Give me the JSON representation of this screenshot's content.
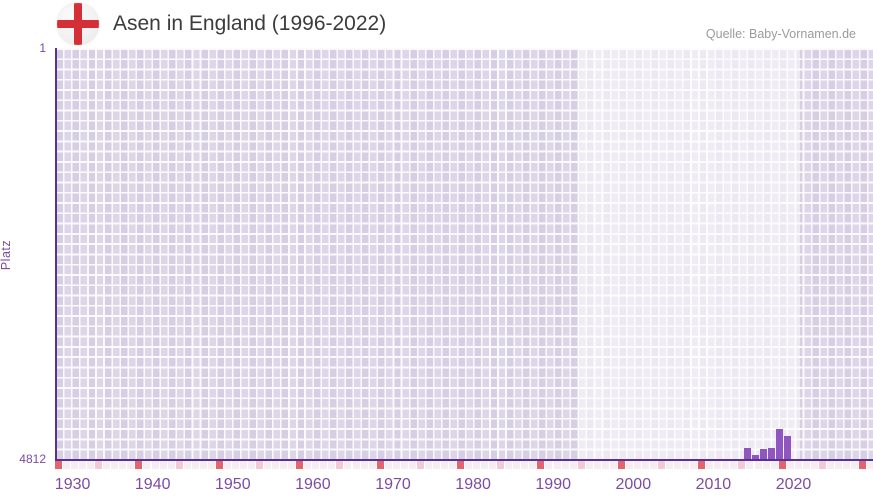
{
  "header": {
    "title": "Asen in England (1996-2022)",
    "source": "Quelle: Baby-Vornamen.de"
  },
  "chart_data": {
    "type": "bar",
    "title": "Asen in England (1996-2022)",
    "xlabel": "",
    "ylabel": "Platz",
    "y_axis": {
      "top_tick": "1",
      "bottom_tick": "4812",
      "min": 1,
      "max": 4812,
      "inverted": true
    },
    "x_ticks": [
      "1930",
      "1940",
      "1950",
      "1960",
      "1970",
      "1980",
      "1990",
      "2000",
      "2010",
      "2020"
    ],
    "x_range_years": [
      1928,
      2030
    ],
    "series": [
      {
        "name": "Platz",
        "points": [
          {
            "year": 2014,
            "rank": 4683
          },
          {
            "year": 2015,
            "rank": 4765
          },
          {
            "year": 2016,
            "rank": 4694
          },
          {
            "year": 2017,
            "rank": 4683
          },
          {
            "year": 2018,
            "rank": 4455
          },
          {
            "year": 2019,
            "rank": 4542
          }
        ]
      }
    ],
    "highlight_band_years": [
      1994,
      2020
    ],
    "grid": true,
    "legend": "none"
  },
  "colors": {
    "bar": "#8f56c0",
    "axis_line": "#5a3191",
    "axis_label": "#7d4ba0",
    "title_text": "#3c3c3c",
    "source_text": "#9b9b9b",
    "grid_cell": "#dcd6e8",
    "highlight_band": "rgba(255,255,255,0.55)",
    "strip_default": "#f6edf2",
    "strip_half_decade": "#f2c9d4",
    "strip_decade": "#e5636e",
    "flag_cross": "#d42f36",
    "flag_bg": "#f2f0f0"
  }
}
